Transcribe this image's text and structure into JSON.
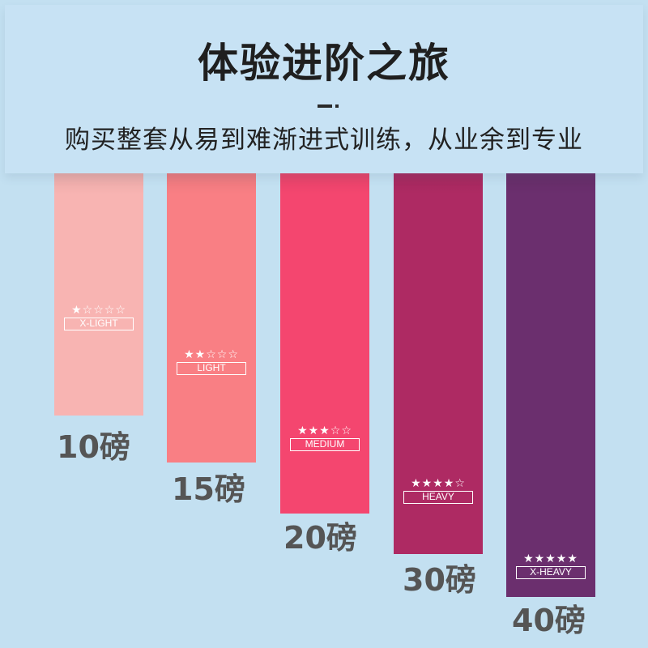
{
  "header": {
    "title": "体验进阶之旅",
    "subtitle": "购买整套从易到难渐进式训练，从业余到专业"
  },
  "bands": [
    {
      "stars": "★☆☆☆☆",
      "level": "X-LIGHT",
      "weight": "10磅",
      "color": "#f8b4b2",
      "stars_filled": 1
    },
    {
      "stars": "★★☆☆☆",
      "level": "LIGHT",
      "weight": "15磅",
      "color": "#f97f84",
      "stars_filled": 2
    },
    {
      "stars": "★★★☆☆",
      "level": "MEDIUM",
      "weight": "20磅",
      "color": "#f4466f",
      "stars_filled": 3
    },
    {
      "stars": "★★★★☆",
      "level": "HEAVY",
      "weight": "30磅",
      "color": "#ae2a63",
      "stars_filled": 4
    },
    {
      "stars": "★★★★★",
      "level": "X-HEAVY",
      "weight": "40磅",
      "color": "#6b2f6e",
      "stars_filled": 5
    }
  ]
}
